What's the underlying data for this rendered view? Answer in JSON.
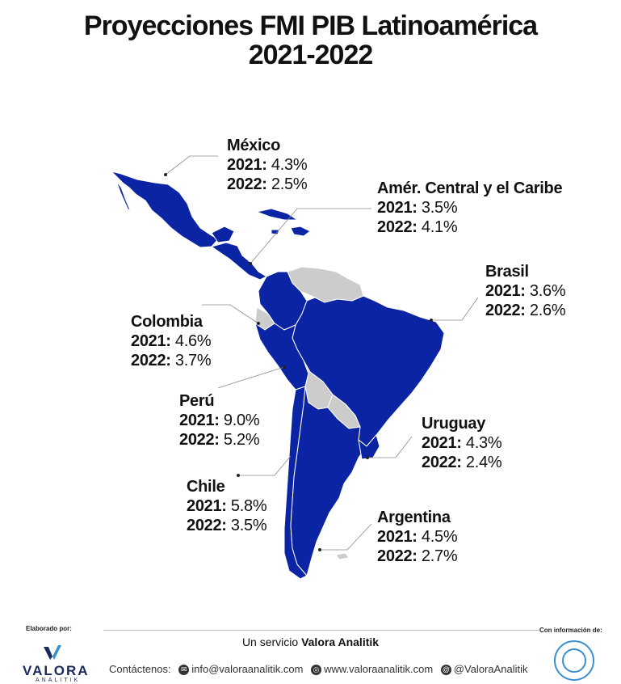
{
  "title_line1": "Proyecciones FMI PIB Latinoamérica",
  "title_line2": "2021-2022",
  "colors": {
    "highlight": "#0b24a3",
    "other": "#cccccc",
    "leader": "#8a8a8a"
  },
  "regions": [
    {
      "name": "México",
      "y2021_label": "2021:",
      "y2021": "4.3%",
      "y2022_label": "2022:",
      "y2022": "2.5%"
    },
    {
      "name": "Amér. Central y el Caribe",
      "y2021_label": "2021:",
      "y2021": "3.5%",
      "y2022_label": "2022:",
      "y2022": "4.1%"
    },
    {
      "name": "Brasil",
      "y2021_label": "2021:",
      "y2021": "3.6%",
      "y2022_label": "2022:",
      "y2022": "2.6%"
    },
    {
      "name": "Colombia",
      "y2021_label": "2021:",
      "y2021": "4.6%",
      "y2022_label": "2022:",
      "y2022": "3.7%"
    },
    {
      "name": "Perú",
      "y2021_label": "2021:",
      "y2021": "9.0%",
      "y2022_label": "2022:",
      "y2022": "5.2%"
    },
    {
      "name": "Uruguay",
      "y2021_label": "2021:",
      "y2021": "4.3%",
      "y2022_label": "2022:",
      "y2022": "2.4%"
    },
    {
      "name": "Chile",
      "y2021_label": "2021:",
      "y2021": "5.8%",
      "y2022_label": "2022:",
      "y2022": "3.5%"
    },
    {
      "name": "Argentina",
      "y2021_label": "2021:",
      "y2021": "4.5%",
      "y2022_label": "2022:",
      "y2022": "2.7%"
    }
  ],
  "footer": {
    "elaborado": "Elaborado por:",
    "con_info": "Con información de:",
    "service_prefix": "Un servicio ",
    "service_brand": "Valora Analitik",
    "contact_label": "Contáctenos:",
    "email": "info@valoraanalitik.com",
    "web": "www.valoraanalitik.com",
    "social": "@ValoraAnalitik",
    "logo_main": "VALORA",
    "logo_sub": "ANALITIK"
  },
  "icons": {
    "email": "email-icon",
    "web": "globe-icon",
    "social": "at-icon",
    "logo": "valora-logo-icon",
    "imf": "imf-seal-icon"
  }
}
